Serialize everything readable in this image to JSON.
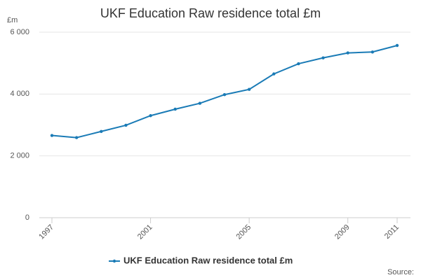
{
  "chart_data": {
    "type": "line",
    "title": "UKF Education Raw residence total £m",
    "y_unit": "£m",
    "source": "Source:",
    "x": [
      1997,
      1998,
      1999,
      2000,
      2001,
      2002,
      2003,
      2004,
      2005,
      2006,
      2007,
      2008,
      2009,
      2010,
      2011
    ],
    "series": [
      {
        "name": "UKF Education Raw residence total £m",
        "color": "#1a7bb6",
        "values": [
          2660,
          2590,
          2790,
          2990,
          3300,
          3510,
          3700,
          3980,
          4150,
          4650,
          4980,
          5170,
          5330,
          5360,
          5570
        ]
      }
    ],
    "xlim": [
      1997,
      2011
    ],
    "xticks": [
      1997,
      2001,
      2005,
      2009,
      2011
    ],
    "ylim": [
      0,
      6000
    ],
    "yticks": [
      0,
      {
        "value": 2000,
        "label": "2 000"
      },
      {
        "value": 4000,
        "label": "4 000"
      },
      {
        "value": 6000,
        "label": "6 000"
      }
    ],
    "grid": true
  }
}
